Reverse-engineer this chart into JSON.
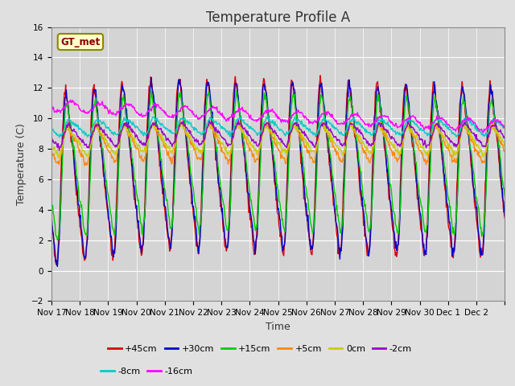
{
  "title": "Temperature Profile A",
  "xlabel": "Time",
  "ylabel": "Temperature (C)",
  "ylim": [
    -2,
    16
  ],
  "n_days": 16,
  "annotation_text": "GT_met",
  "annotation_bg": "#ffffcc",
  "annotation_border": "#888800",
  "background_color": "#e0e0e0",
  "plot_bg": "#d4d4d4",
  "grid_color": "#ffffff",
  "series_labels": [
    "+45cm",
    "+30cm",
    "+15cm",
    "+5cm",
    "0cm",
    "-2cm",
    "-8cm",
    "-16cm"
  ],
  "series_colors": [
    "#dd0000",
    "#0000cc",
    "#00cc00",
    "#ff8800",
    "#cccc00",
    "#9900cc",
    "#00cccc",
    "#ff00ff"
  ],
  "tick_labels": [
    "Nov 17",
    "Nov 18",
    "Nov 19",
    "Nov 20",
    "Nov 21",
    "Nov 22",
    "Nov 23",
    "Nov 24",
    "Nov 25",
    "Nov 26",
    "Nov 27",
    "Nov 28",
    "Nov 29",
    "Nov 30",
    "Dec 1",
    "Dec 2"
  ],
  "title_fontsize": 12,
  "label_fontsize": 9,
  "tick_fontsize": 7.5,
  "legend_fontsize": 8
}
